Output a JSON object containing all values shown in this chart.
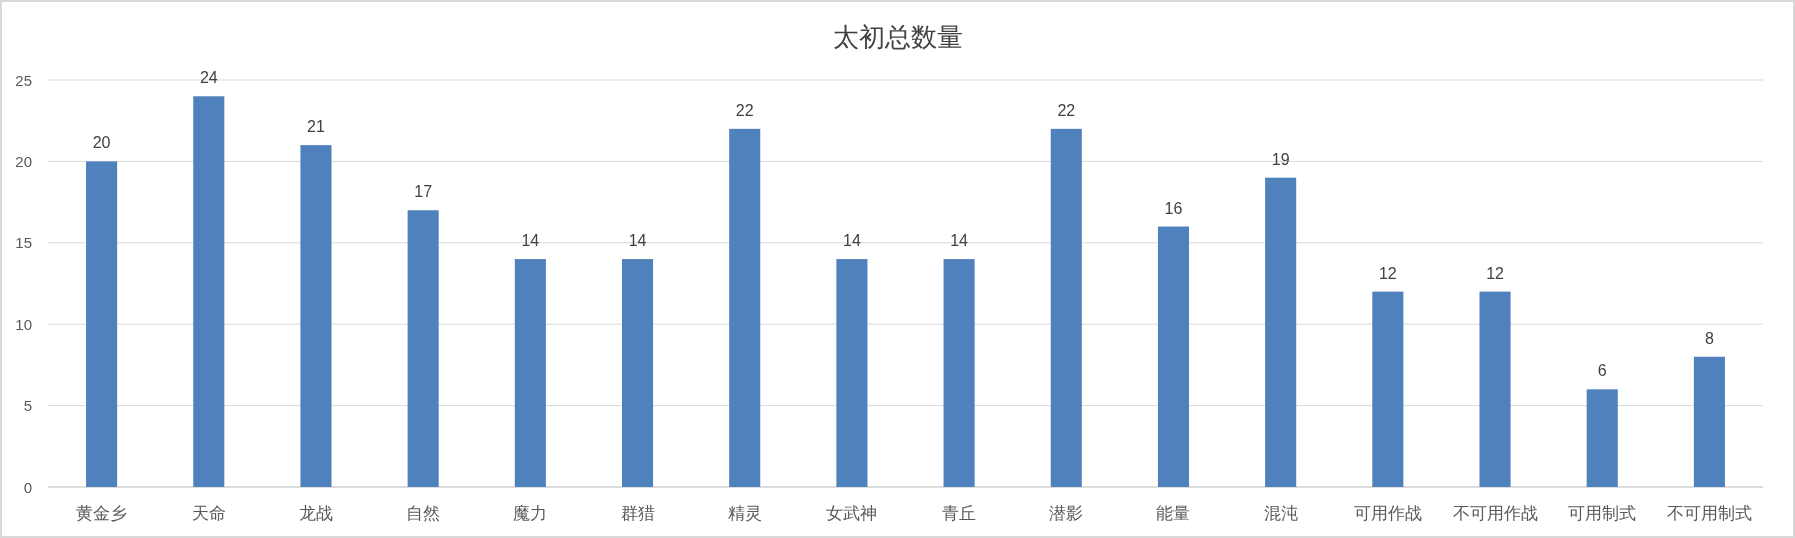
{
  "chart_data": {
    "type": "bar",
    "title": "太初总数量",
    "categories": [
      "黄金乡",
      "天命",
      "龙战",
      "自然",
      "魔力",
      "群猎",
      "精灵",
      "女武神",
      "青丘",
      "潜影",
      "能量",
      "混沌",
      "可用作战",
      "不可用作战",
      "可用制式",
      "不可用制式"
    ],
    "values": [
      20,
      24,
      21,
      17,
      14,
      14,
      22,
      14,
      14,
      22,
      16,
      19,
      12,
      12,
      6,
      8
    ],
    "color": "#4f81bd",
    "ylim": [
      0,
      25
    ],
    "yticks": [
      0,
      5,
      10,
      15,
      20,
      25
    ],
    "grid": "y",
    "data_labels": true
  }
}
